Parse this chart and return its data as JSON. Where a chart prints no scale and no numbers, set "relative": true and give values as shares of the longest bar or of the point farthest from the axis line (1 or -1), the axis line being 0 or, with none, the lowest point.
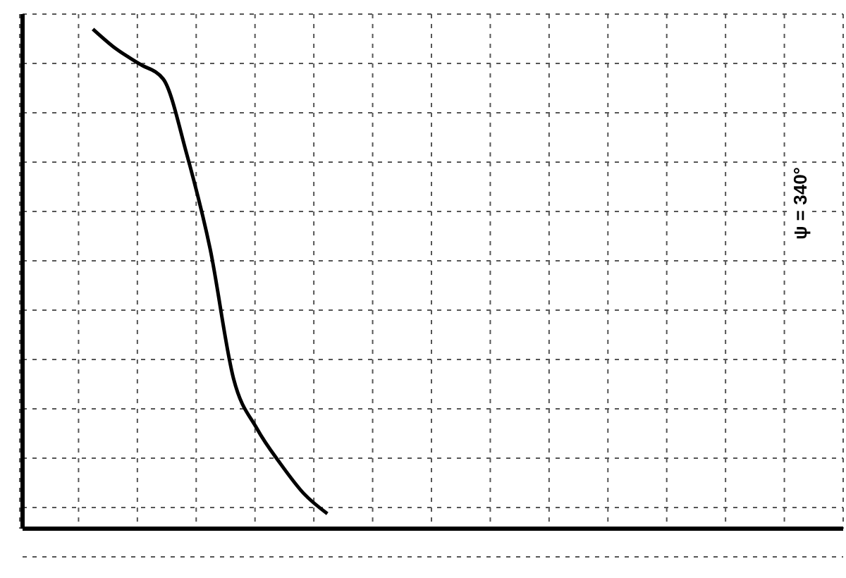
{
  "chart_data": {
    "type": "line",
    "relative": true,
    "categories": [
      null,
      null,
      null,
      null,
      null,
      null,
      null,
      null,
      null,
      null,
      null,
      null,
      null,
      null,
      null,
      null,
      null,
      null,
      null,
      null,
      null,
      null,
      null,
      null,
      null,
      null,
      null,
      null,
      null,
      null,
      null,
      null,
      null,
      null,
      null,
      null
    ],
    "series": [
      {
        "color": "#000000",
        "values": [
          null,
          null,
          null,
          1,
          0.96,
          0.93,
          0.9,
          0.75,
          0.56,
          0.3,
          0.2,
          0.13,
          0.07,
          0.03,
          null,
          null,
          null,
          null,
          null,
          null,
          null,
          null,
          null,
          null,
          null,
          null,
          null,
          null,
          null,
          null,
          null,
          null,
          null,
          null,
          null,
          null
        ]
      }
    ],
    "annotations": [
      "ψ = 340°"
    ],
    "grid": true,
    "marker": "none",
    "line_style": "solid"
  }
}
